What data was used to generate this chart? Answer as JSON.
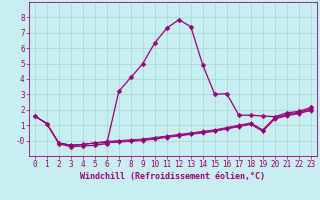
{
  "xlabel": "Windchill (Refroidissement éolien,°C)",
  "background_color": "#c8eef0",
  "grid_color": "#aadddd",
  "line_color": "#990077",
  "x": [
    0,
    1,
    2,
    3,
    4,
    5,
    6,
    7,
    8,
    9,
    10,
    11,
    12,
    13,
    14,
    15,
    16,
    17,
    18,
    19,
    20,
    21,
    22,
    23
  ],
  "series": [
    [
      1.6,
      1.1,
      -0.15,
      -0.3,
      -0.25,
      -0.15,
      -0.05,
      0.0,
      0.05,
      0.1,
      0.2,
      0.3,
      0.4,
      0.5,
      0.6,
      0.7,
      0.85,
      1.0,
      1.15,
      0.7,
      1.5,
      1.7,
      1.85,
      2.05
    ],
    [
      1.6,
      1.1,
      -0.15,
      -0.3,
      -0.25,
      -0.15,
      -0.1,
      -0.05,
      0.0,
      0.05,
      0.15,
      0.25,
      0.35,
      0.45,
      0.55,
      0.65,
      0.8,
      0.95,
      1.1,
      0.65,
      1.45,
      1.65,
      1.8,
      2.0
    ],
    [
      1.6,
      1.1,
      -0.15,
      -0.3,
      -0.25,
      -0.15,
      -0.15,
      -0.1,
      -0.05,
      0.0,
      0.1,
      0.2,
      0.3,
      0.4,
      0.5,
      0.6,
      0.75,
      0.9,
      1.05,
      0.6,
      1.4,
      1.6,
      1.75,
      1.95
    ],
    [
      1.6,
      1.1,
      -0.2,
      -0.4,
      -0.35,
      -0.3,
      -0.2,
      3.2,
      4.1,
      5.0,
      6.35,
      7.3,
      7.85,
      7.4,
      4.9,
      3.0,
      3.05,
      1.65,
      1.65,
      1.6,
      1.55,
      1.8,
      1.9,
      2.15
    ]
  ],
  "ylim": [
    -1,
    9
  ],
  "xlim": [
    -0.5,
    23.5
  ],
  "yticks": [
    0,
    1,
    2,
    3,
    4,
    5,
    6,
    7,
    8
  ],
  "xticks": [
    0,
    1,
    2,
    3,
    4,
    5,
    6,
    7,
    8,
    9,
    10,
    11,
    12,
    13,
    14,
    15,
    16,
    17,
    18,
    19,
    20,
    21,
    22,
    23
  ],
  "markersize": 2.5,
  "linewidth": 0.9,
  "tick_fontsize": 5.5,
  "label_fontsize": 6.0
}
